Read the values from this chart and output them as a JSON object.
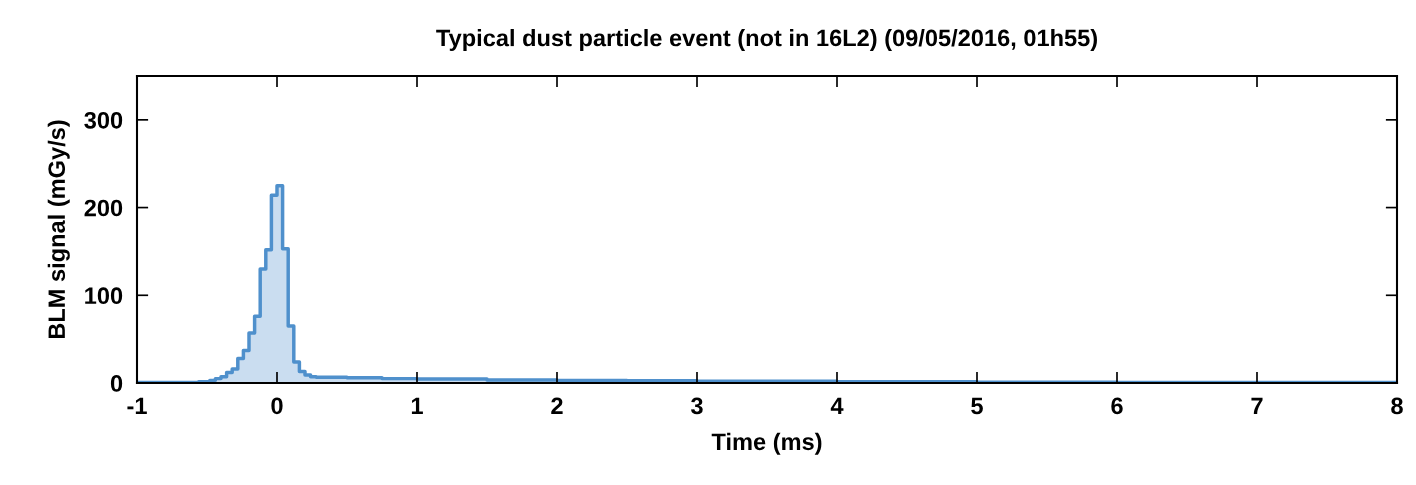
{
  "chart_data": {
    "type": "histogram",
    "title": "Typical dust particle event (not in 16L2) (09/05/2016, 01h55)",
    "xlabel": "Time (ms)",
    "ylabel": "BLM signal (mGy/s)",
    "bins": [
      -1,
      -0.56,
      -0.52,
      -0.48,
      -0.44,
      -0.4,
      -0.36,
      -0.32,
      -0.28,
      -0.24,
      -0.2,
      -0.16,
      -0.12,
      -0.08,
      -0.04,
      0,
      0.04,
      0.08,
      0.12,
      0.16,
      0.2,
      0.24,
      0.28,
      0.5,
      0.75,
      1,
      1.5,
      2,
      2.5,
      3,
      3.5,
      4,
      5,
      6,
      7,
      8
    ],
    "values": [
      0.5,
      1.5,
      1.5,
      3,
      5,
      7,
      12,
      16,
      28,
      37,
      57,
      76,
      130,
      152,
      214,
      225,
      153,
      65,
      24,
      13,
      9,
      7,
      6.5,
      6,
      5,
      4.5,
      3.5,
      3,
      2.5,
      2,
      2,
      1.5,
      1,
      0.5,
      0.5
    ],
    "color": "#4f90cc",
    "xlim": [
      -1,
      8
    ],
    "ylim": [
      0,
      350
    ],
    "xticks": [
      -1,
      0,
      1,
      2,
      3,
      4,
      5,
      6,
      7,
      8
    ],
    "yticks": [
      0,
      100,
      200,
      300
    ],
    "grid": false,
    "legend": false
  }
}
